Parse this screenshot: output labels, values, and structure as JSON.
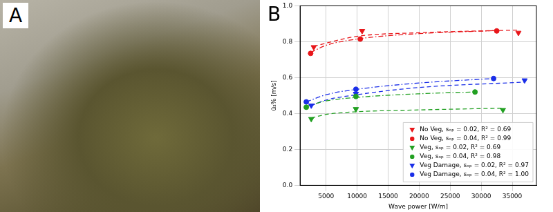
{
  "photo": {
    "label": "A"
  },
  "chart_data": {
    "type": "scatter",
    "label": "B",
    "x_label": "Wave power [W/m]",
    "y_label": "û₂% [m/s]",
    "xlim": [
      800,
      38900
    ],
    "xticks": [
      5000,
      10000,
      15000,
      20000,
      25000,
      30000,
      35000
    ],
    "ylim": [
      0,
      1
    ],
    "yticks": [
      {
        "value": 0,
        "label": "0.0"
      },
      {
        "value": 0.2,
        "label": "0.2"
      },
      {
        "value": 0.4,
        "label": "0.4"
      },
      {
        "value": 0.6,
        "label": "0.6"
      },
      {
        "value": 0.8,
        "label": "0.8"
      },
      {
        "value": 1,
        "label": "1.0"
      }
    ],
    "grid": true,
    "legend": "bottom right",
    "series": [
      {
        "name": "No Veg, sₒₚ = 0.02, R² = 0.69",
        "color": "#e8161a",
        "marker": "triangle_down",
        "x": [
          3000,
          10800,
          36000
        ],
        "values": [
          0.77,
          0.86,
          0.85
        ],
        "fit": {
          "line_style": "dashed",
          "x": [
            3000,
            10000,
            20000,
            36000
          ],
          "values": [
            0.775,
            0.83,
            0.85,
            0.865
          ]
        }
      },
      {
        "name": "No Veg, sₒₚ = 0.04, R² = 0.99",
        "color": "#e8161a",
        "marker": "circle",
        "x": [
          2500,
          10500,
          32500
        ],
        "values": [
          0.735,
          0.815,
          0.86
        ],
        "fit": {
          "line_style": "dashdot",
          "x": [
            2500,
            5000,
            10000,
            20000,
            32500
          ],
          "values": [
            0.74,
            0.78,
            0.815,
            0.845,
            0.862
          ]
        }
      },
      {
        "name": "Veg, sₒₚ = 0.02, R² = 0.69",
        "color": "#22a022",
        "marker": "triangle_down",
        "x": [
          2600,
          9800,
          33500
        ],
        "values": [
          0.37,
          0.425,
          0.42
        ],
        "fit": {
          "line_style": "dashed",
          "x": [
            2600,
            5000,
            10000,
            20000,
            33500
          ],
          "values": [
            0.375,
            0.395,
            0.41,
            0.42,
            0.43
          ]
        }
      },
      {
        "name": "Veg, sₒₚ = 0.04, R² = 0.98",
        "color": "#22a022",
        "marker": "circle",
        "x": [
          1800,
          9800,
          29000
        ],
        "values": [
          0.435,
          0.495,
          0.52
        ],
        "fit": {
          "line_style": "dashdot",
          "x": [
            1800,
            5000,
            10000,
            20000,
            29000
          ],
          "values": [
            0.44,
            0.47,
            0.49,
            0.51,
            0.52
          ]
        }
      },
      {
        "name": "Veg Damage, sₒₚ = 0.02, R² = 0.97",
        "color": "#1a2ee8",
        "marker": "triangle_down",
        "x": [
          2600,
          9800,
          37000
        ],
        "values": [
          0.445,
          0.51,
          0.585
        ],
        "fit": {
          "line_style": "dashed",
          "x": [
            2600,
            5000,
            10000,
            20000,
            37000
          ],
          "values": [
            0.445,
            0.475,
            0.505,
            0.545,
            0.575
          ]
        }
      },
      {
        "name": "Veg Damage, sₒₚ = 0.04, R² = 1.00",
        "color": "#1a2ee8",
        "marker": "circle",
        "x": [
          1800,
          9800,
          32000
        ],
        "values": [
          0.465,
          0.535,
          0.595
        ],
        "fit": {
          "line_style": "dashdot",
          "x": [
            1800,
            5000,
            10000,
            20000,
            32000
          ],
          "values": [
            0.465,
            0.505,
            0.535,
            0.57,
            0.595
          ]
        }
      }
    ]
  }
}
